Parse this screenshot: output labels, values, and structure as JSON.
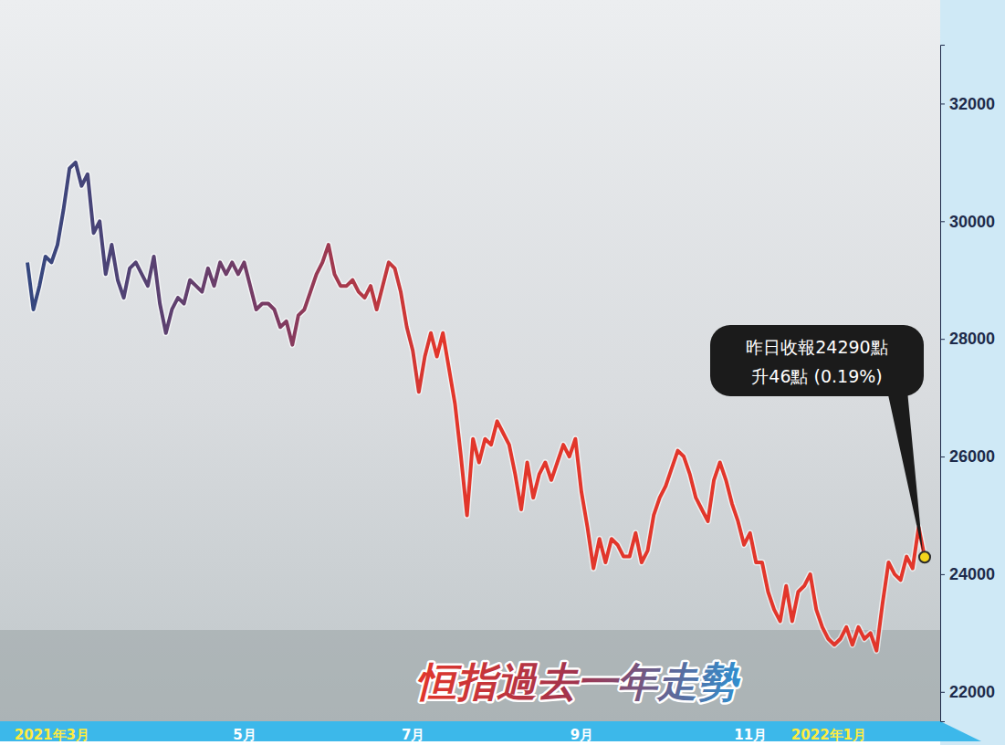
{
  "chart_data": {
    "type": "line",
    "title": "恒指過去一年走勢",
    "annotation": [
      "昨日收報24290點",
      "升46點 (0.19%)"
    ],
    "categories": [
      null,
      null,
      null,
      null,
      "2021年3月",
      null,
      null,
      null,
      null,
      null,
      null,
      null,
      null,
      null,
      null,
      null,
      null,
      null,
      null,
      null,
      null,
      null,
      null,
      null,
      null,
      null,
      null,
      null,
      null,
      null,
      null,
      null,
      null,
      null,
      null,
      null,
      "5月",
      null,
      null,
      null,
      null,
      null,
      null,
      null,
      null,
      null,
      null,
      null,
      null,
      null,
      null,
      null,
      null,
      null,
      null,
      null,
      null,
      null,
      null,
      null,
      null,
      null,
      null,
      null,
      "7月",
      null,
      null,
      null,
      null,
      null,
      null,
      null,
      null,
      null,
      null,
      null,
      null,
      null,
      null,
      null,
      null,
      null,
      null,
      null,
      null,
      null,
      null,
      null,
      null,
      null,
      null,
      null,
      "9月",
      null,
      null,
      null,
      null,
      null,
      null,
      null,
      null,
      null,
      null,
      null,
      null,
      null,
      null,
      null,
      null,
      null,
      null,
      null,
      null,
      null,
      null,
      null,
      null,
      null,
      null,
      null,
      "11月",
      null,
      null,
      null,
      null,
      null,
      null,
      null,
      null,
      null,
      null,
      null,
      null,
      "2022年1月",
      null,
      null,
      null,
      null,
      null,
      null,
      null,
      null,
      null,
      null,
      null,
      null,
      null,
      null,
      null,
      null
    ],
    "values": [
      29300,
      28500,
      28900,
      29400,
      29300,
      29600,
      30200,
      30900,
      31000,
      30600,
      30800,
      29800,
      30000,
      29100,
      29600,
      29000,
      28700,
      29200,
      29300,
      29100,
      28900,
      29400,
      28600,
      28100,
      28500,
      28700,
      28600,
      29000,
      28900,
      28800,
      29200,
      28900,
      29300,
      29100,
      29300,
      29100,
      29300,
      28900,
      28500,
      28600,
      28600,
      28500,
      28200,
      28300,
      27900,
      28400,
      28500,
      28800,
      29100,
      29300,
      29600,
      29100,
      28900,
      28900,
      29000,
      28800,
      28700,
      28900,
      28500,
      28900,
      29300,
      29200,
      28800,
      28200,
      27800,
      27100,
      27700,
      28100,
      27700,
      28100,
      27500,
      26900,
      26000,
      25000,
      26300,
      25900,
      26300,
      26200,
      26600,
      26400,
      26200,
      25700,
      25100,
      25900,
      25300,
      25700,
      25900,
      25600,
      25900,
      26200,
      26000,
      26300,
      25400,
      24800,
      24100,
      24600,
      24200,
      24600,
      24500,
      24300,
      24300,
      24700,
      24200,
      24400,
      25000,
      25300,
      25500,
      25800,
      26100,
      26000,
      25700,
      25300,
      25100,
      24900,
      25600,
      25900,
      25600,
      25200,
      24900,
      24500,
      24700,
      24200,
      24200,
      23700,
      23400,
      23200,
      23800,
      23200,
      23700,
      23800,
      24000,
      23400,
      23100,
      22900,
      22800,
      22900,
      23100,
      22800,
      23100,
      22900,
      23000,
      22700,
      23500,
      24200,
      24000,
      23900,
      24300,
      24100,
      24800,
      24290
    ],
    "color": "#e2362b",
    "ylim": [
      21500,
      33000
    ],
    "yticks": [
      22000,
      24000,
      26000,
      28000,
      30000,
      32000
    ],
    "grid": false
  }
}
